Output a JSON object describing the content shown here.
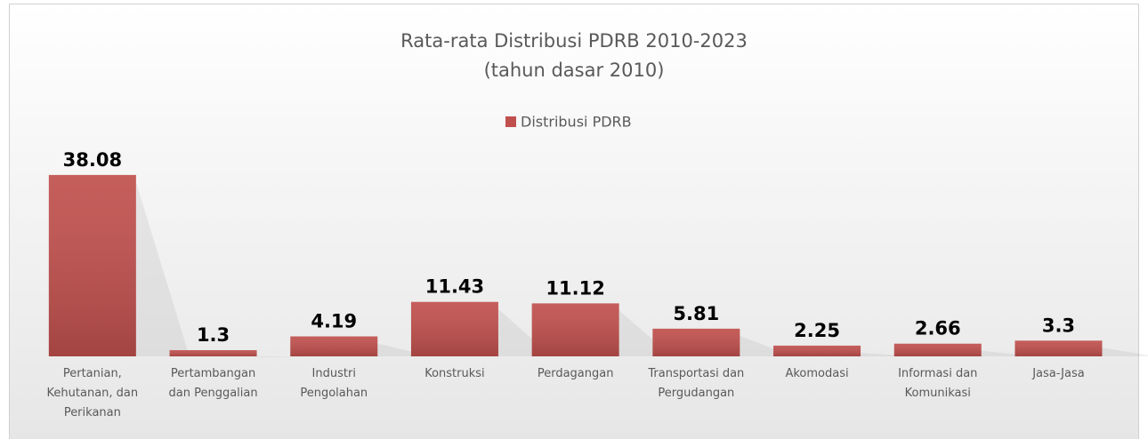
{
  "chart_data": {
    "type": "bar",
    "title": "Rata-rata Distribusi PDRB 2010-2023",
    "subtitle": "(tahun dasar 2010)",
    "categories": [
      "Pertanian, Kehutanan, dan Perikanan",
      "Pertambangan dan Penggalian",
      "Industri Pengolahan",
      "Konstruksi",
      "Perdagangan",
      "Transportasi dan Pergudangan",
      "Akomodasi",
      "Informasi dan Komunikasi",
      "Jasa-Jasa"
    ],
    "series": [
      {
        "name": "Distribusi PDRB",
        "color": "#c0504d",
        "values": [
          38.08,
          1.3,
          4.19,
          11.43,
          11.12,
          5.81,
          2.25,
          2.66,
          3.3
        ]
      }
    ],
    "legend": "top"
  }
}
